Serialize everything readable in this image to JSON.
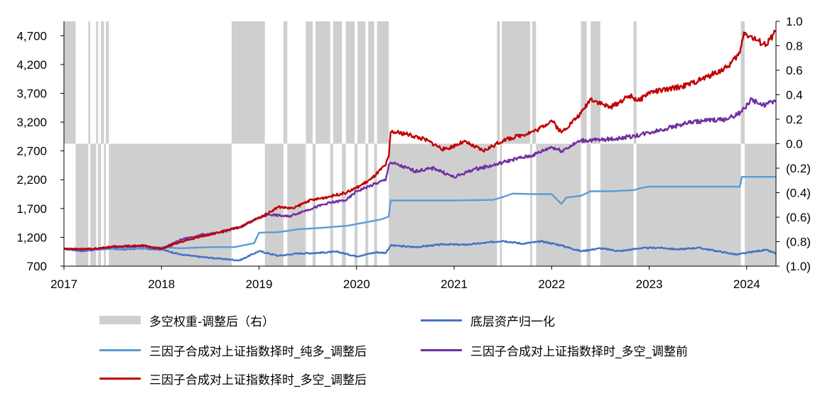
{
  "chart_data": {
    "type": "line",
    "x_ticks": [
      "2017",
      "2018",
      "2019",
      "2020",
      "2021",
      "2022",
      "2023",
      "2024"
    ],
    "x_range": [
      2017.0,
      2024.3
    ],
    "y_left": {
      "range": [
        700,
        4950
      ],
      "ticks": [
        700,
        1200,
        1700,
        2200,
        2700,
        3200,
        3700,
        4200,
        4700
      ],
      "tick_labels": [
        "700",
        "1,200",
        "1,700",
        "2,200",
        "2,700",
        "3,200",
        "3,700",
        "4,200",
        "4,700"
      ]
    },
    "y_right": {
      "range": [
        -1.0,
        1.0
      ],
      "ticks": [
        -1.0,
        -0.8,
        -0.6,
        -0.4,
        -0.2,
        0.0,
        0.2,
        0.4,
        0.6,
        0.8,
        1.0
      ],
      "tick_labels": [
        "(1.0)",
        "(0.8)",
        "(0.6)",
        "(0.4)",
        "(0.2)",
        "0.0",
        "0.2",
        "0.4",
        "0.6",
        "0.8",
        "1.0"
      ]
    },
    "weight_series": {
      "name": "多空权重-调整后（右）",
      "color": "#d0cfd0",
      "segments": [
        [
          2017.0,
          2017.12,
          1
        ],
        [
          2017.12,
          2017.25,
          -1
        ],
        [
          2017.25,
          2017.27,
          1
        ],
        [
          2017.27,
          2017.33,
          -1
        ],
        [
          2017.33,
          2017.35,
          1
        ],
        [
          2017.35,
          2017.38,
          -1
        ],
        [
          2017.38,
          2017.41,
          1
        ],
        [
          2017.41,
          2017.43,
          -1
        ],
        [
          2017.43,
          2017.46,
          1
        ],
        [
          2017.46,
          2017.54,
          -1
        ],
        [
          2017.54,
          2018.72,
          -1
        ],
        [
          2018.72,
          2018.75,
          1
        ],
        [
          2018.75,
          2018.88,
          1
        ],
        [
          2018.88,
          2019.06,
          1
        ],
        [
          2019.06,
          2019.1,
          -1
        ],
        [
          2019.1,
          2019.25,
          -1
        ],
        [
          2019.25,
          2019.29,
          1
        ],
        [
          2019.29,
          2019.48,
          -1
        ],
        [
          2019.48,
          2019.55,
          1
        ],
        [
          2019.55,
          2019.58,
          -1
        ],
        [
          2019.58,
          2019.73,
          1
        ],
        [
          2019.73,
          2019.76,
          -1
        ],
        [
          2019.76,
          2019.85,
          1
        ],
        [
          2019.85,
          2019.89,
          -1
        ],
        [
          2019.89,
          2019.98,
          1
        ],
        [
          2019.98,
          2020.01,
          -1
        ],
        [
          2020.01,
          2020.09,
          1
        ],
        [
          2020.09,
          2020.12,
          -1
        ],
        [
          2020.12,
          2020.18,
          1
        ],
        [
          2020.18,
          2020.21,
          -1
        ],
        [
          2020.21,
          2020.33,
          1
        ],
        [
          2020.33,
          2021.44,
          -1
        ],
        [
          2021.44,
          2021.47,
          1
        ],
        [
          2021.47,
          2021.49,
          -1
        ],
        [
          2021.49,
          2021.53,
          1
        ],
        [
          2021.53,
          2021.78,
          1
        ],
        [
          2021.78,
          2021.8,
          -1
        ],
        [
          2021.8,
          2021.84,
          1
        ],
        [
          2021.84,
          2022.3,
          -1
        ],
        [
          2022.3,
          2022.36,
          1
        ],
        [
          2022.36,
          2022.4,
          -1
        ],
        [
          2022.4,
          2022.5,
          1
        ],
        [
          2022.5,
          2022.84,
          -1
        ],
        [
          2022.84,
          2022.87,
          1
        ],
        [
          2022.87,
          2023.94,
          -1
        ],
        [
          2023.94,
          2023.98,
          1
        ],
        [
          2023.98,
          2024.3,
          -1
        ]
      ]
    },
    "series": [
      {
        "name": "底层资产归一化",
        "color": "#4472c4",
        "x": [
          2017.0,
          2017.2,
          2017.4,
          2017.6,
          2017.8,
          2018.0,
          2018.2,
          2018.4,
          2018.6,
          2018.8,
          2019.0,
          2019.2,
          2019.4,
          2019.6,
          2019.8,
          2020.0,
          2020.2,
          2020.3,
          2020.35,
          2020.6,
          2020.9,
          2021.1,
          2021.3,
          2021.5,
          2021.7,
          2021.9,
          2022.1,
          2022.3,
          2022.5,
          2022.7,
          2022.9,
          2023.1,
          2023.3,
          2023.5,
          2023.7,
          2023.9,
          2024.0,
          2024.1,
          2024.2,
          2024.3
        ],
        "y": [
          1000,
          960,
          1010,
          990,
          1010,
          990,
          900,
          860,
          830,
          800,
          960,
          880,
          920,
          930,
          950,
          870,
          940,
          930,
          1060,
          1030,
          1080,
          1070,
          1100,
          1140,
          1090,
          1130,
          1060,
          960,
          1010,
          960,
          1010,
          1020,
          990,
          1020,
          960,
          900,
          930,
          960,
          980,
          920
        ]
      },
      {
        "name": "三因子合成对上证指数择时_纯多_调整后",
        "color": "#5b9bd5",
        "x": [
          2017.0,
          2017.3,
          2017.5,
          2017.8,
          2018.0,
          2018.2,
          2018.5,
          2018.75,
          2018.95,
          2019.0,
          2019.2,
          2019.4,
          2019.6,
          2019.9,
          2020.0,
          2020.25,
          2020.33,
          2020.35,
          2021.0,
          2021.4,
          2021.5,
          2021.6,
          2021.8,
          2022.0,
          2022.1,
          2022.15,
          2022.3,
          2022.4,
          2022.6,
          2022.85,
          2022.9,
          2023.0,
          2023.5,
          2023.93,
          2023.95,
          2024.0,
          2024.3
        ],
        "y": [
          1000,
          980,
          1000,
          1010,
          1030,
          1010,
          1030,
          1030,
          1100,
          1280,
          1290,
          1340,
          1360,
          1400,
          1430,
          1510,
          1560,
          1840,
          1840,
          1850,
          1900,
          1960,
          1950,
          1950,
          1780,
          1890,
          1920,
          2000,
          2000,
          2020,
          2050,
          2080,
          2080,
          2080,
          2250,
          2250,
          2250
        ]
      },
      {
        "name": "三因子合成对上证指数择时_多空_调整前",
        "color": "#7030a0",
        "x": [
          2017.0,
          2017.3,
          2017.5,
          2017.8,
          2018.0,
          2018.2,
          2018.4,
          2018.6,
          2018.8,
          2018.95,
          2019.1,
          2019.3,
          2019.5,
          2019.7,
          2019.9,
          2020.0,
          2020.15,
          2020.3,
          2020.33,
          2020.35,
          2020.6,
          2020.8,
          2021.0,
          2021.2,
          2021.4,
          2021.6,
          2021.8,
          2022.0,
          2022.1,
          2022.3,
          2022.5,
          2022.7,
          2022.85,
          2023.0,
          2023.2,
          2023.4,
          2023.6,
          2023.8,
          2023.95,
          2024.05,
          2024.15,
          2024.3
        ],
        "y": [
          1000,
          990,
          1030,
          1050,
          1000,
          1160,
          1240,
          1280,
          1370,
          1500,
          1600,
          1560,
          1680,
          1790,
          1850,
          2000,
          2100,
          2200,
          2460,
          2500,
          2350,
          2400,
          2240,
          2380,
          2450,
          2550,
          2620,
          2770,
          2700,
          2880,
          2890,
          2920,
          2960,
          3020,
          3100,
          3190,
          3230,
          3250,
          3380,
          3600,
          3490,
          3560
        ]
      },
      {
        "name": "三因子合成对上证指数择时_多空_调整后",
        "color": "#c00000",
        "x": [
          2017.0,
          2017.3,
          2017.5,
          2017.8,
          2018.0,
          2018.2,
          2018.4,
          2018.6,
          2018.8,
          2018.95,
          2019.05,
          2019.2,
          2019.35,
          2019.5,
          2019.7,
          2019.9,
          2020.0,
          2020.15,
          2020.3,
          2020.33,
          2020.35,
          2020.5,
          2020.7,
          2020.9,
          2021.1,
          2021.3,
          2021.5,
          2021.7,
          2021.85,
          2022.0,
          2022.1,
          2022.3,
          2022.4,
          2022.6,
          2022.8,
          2022.9,
          2023.0,
          2023.2,
          2023.4,
          2023.6,
          2023.8,
          2023.93,
          2023.97,
          2024.1,
          2024.2,
          2024.3
        ],
        "y": [
          1000,
          1000,
          1040,
          1060,
          1000,
          1120,
          1210,
          1290,
          1380,
          1500,
          1580,
          1730,
          1700,
          1830,
          1900,
          1980,
          2060,
          2210,
          2460,
          2600,
          3030,
          3000,
          2900,
          2720,
          2860,
          2700,
          2880,
          2980,
          3060,
          3230,
          3020,
          3350,
          3610,
          3450,
          3660,
          3570,
          3720,
          3770,
          3850,
          3990,
          4150,
          4400,
          4760,
          4620,
          4540,
          4780
        ]
      }
    ]
  },
  "legend": {
    "weight": "多空权重-调整后（右）",
    "asset": "底层资产归一化",
    "long_only": "三因子合成对上证指数择时_纯多_调整后",
    "ls_before": "三因子合成对上证指数择时_多空_调整前",
    "ls_after": "三因子合成对上证指数择时_多空_调整后"
  }
}
